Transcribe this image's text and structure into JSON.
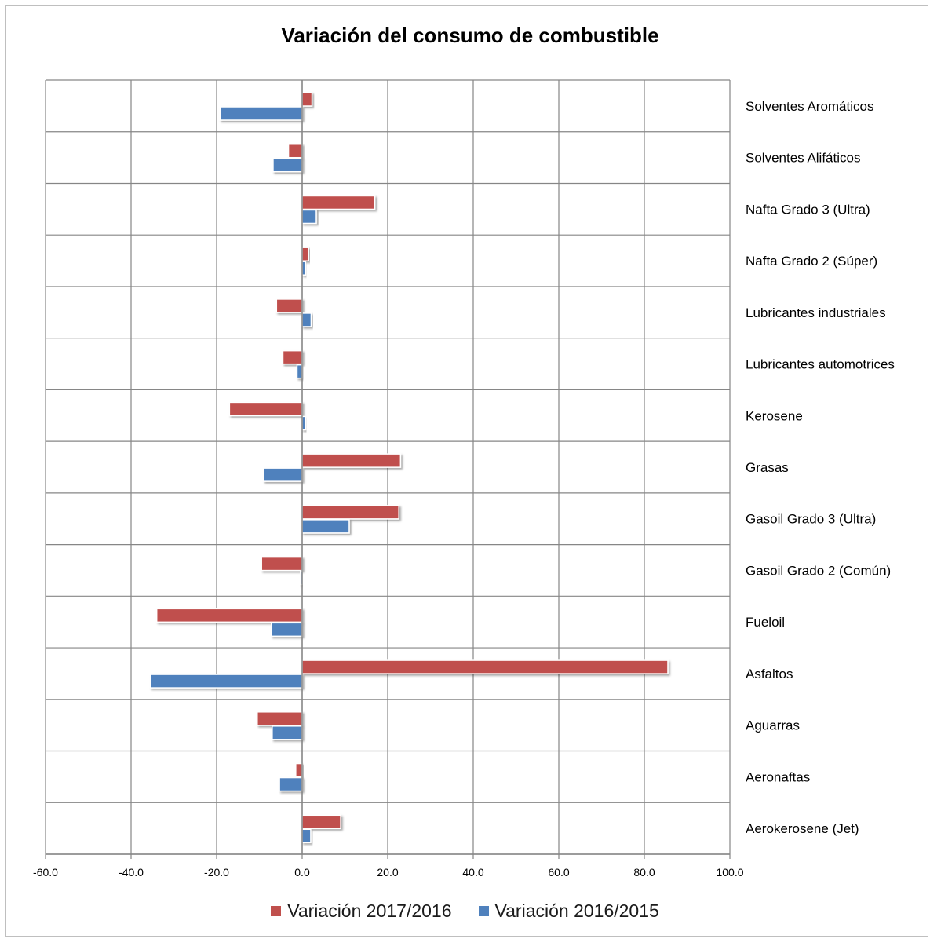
{
  "chart_data": {
    "type": "bar",
    "orientation": "horizontal",
    "title": "Variación del consumo de combustible",
    "categories": [
      "Aerokerosene (Jet)",
      "Aeronaftas",
      "Aguarras",
      "Asfaltos",
      "Fueloil",
      "Gasoil Grado 2 (Común)",
      "Gasoil Grado 3 (Ultra)",
      "Grasas",
      "Kerosene",
      "Lubricantes automotrices",
      "Lubricantes industriales",
      "Nafta Grado 2 (Súper)",
      "Nafta Grado 3 (Ultra)",
      "Solventes Alifáticos",
      "Solventes Aromáticos"
    ],
    "series": [
      {
        "name": "Variación 2017/2016",
        "color": "#c0504d",
        "values": [
          9.0,
          -1.5,
          -10.5,
          85.5,
          -34.0,
          -9.5,
          22.6,
          23.0,
          -17.0,
          -4.5,
          -6.0,
          1.5,
          17.0,
          -3.2,
          2.3
        ]
      },
      {
        "name": "Variación 2016/2015",
        "color": "#4f81bd",
        "values": [
          2.0,
          -5.3,
          -7.0,
          -35.5,
          -7.2,
          -0.5,
          11.0,
          -9.0,
          0.8,
          -1.2,
          2.1,
          0.8,
          3.3,
          -6.8,
          -19.2
        ]
      }
    ],
    "xlim": [
      -60,
      100
    ],
    "xticks": [
      "-60.0",
      "-40.0",
      "-20.0",
      "0.0",
      "20.0",
      "40.0",
      "60.0",
      "80.0",
      "100.0"
    ],
    "grid": true,
    "legend_position": "bottom"
  }
}
